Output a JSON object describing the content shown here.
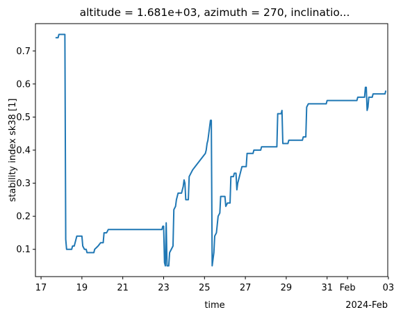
{
  "chart_data": {
    "type": "line",
    "title": "altitude = 1.681e+03, azimuth = 270, inclinatio...",
    "xlabel": "time",
    "ylabel": "stability index sk38 [1]",
    "x_offset_label": "2024-Feb",
    "x_axis_type": "date",
    "xlim": [
      "2024-01-16T17:25",
      "2024-02-02T23:14"
    ],
    "ylim": [
      0.0175,
      0.7825
    ],
    "x_ticks": [
      {
        "label": "17",
        "value": "2024-01-17"
      },
      {
        "label": "19",
        "value": "2024-01-19"
      },
      {
        "label": "21",
        "value": "2024-01-21"
      },
      {
        "label": "23",
        "value": "2024-01-23"
      },
      {
        "label": "25",
        "value": "2024-01-25"
      },
      {
        "label": "27",
        "value": "2024-01-27"
      },
      {
        "label": "29",
        "value": "2024-01-29"
      },
      {
        "label": "31",
        "value": "2024-01-31"
      },
      {
        "label": "Feb",
        "value": "2024-02-01"
      },
      {
        "label": "03",
        "value": "2024-02-03"
      }
    ],
    "y_ticks": [
      {
        "label": "0.1",
        "value": 0.1
      },
      {
        "label": "0.2",
        "value": 0.2
      },
      {
        "label": "0.3",
        "value": 0.3
      },
      {
        "label": "0.4",
        "value": 0.4
      },
      {
        "label": "0.5",
        "value": 0.5
      },
      {
        "label": "0.6",
        "value": 0.6
      },
      {
        "label": "0.7",
        "value": 0.7
      }
    ],
    "grid": false,
    "series": [
      {
        "color": "#1f77b4",
        "points": [
          [
            "2024-01-17T17:00",
            0.74
          ],
          [
            "2024-01-17T20:00",
            0.74
          ],
          [
            "2024-01-17T21:00",
            0.75
          ],
          [
            "2024-01-18T04:00",
            0.75
          ],
          [
            "2024-01-18T05:00",
            0.13
          ],
          [
            "2024-01-18T06:00",
            0.1
          ],
          [
            "2024-01-18T12:00",
            0.1
          ],
          [
            "2024-01-18T13:00",
            0.11
          ],
          [
            "2024-01-18T15:00",
            0.11
          ],
          [
            "2024-01-18T17:00",
            0.13
          ],
          [
            "2024-01-18T18:00",
            0.14
          ],
          [
            "2024-01-19T00:00",
            0.14
          ],
          [
            "2024-01-19T01:00",
            0.11
          ],
          [
            "2024-01-19T03:00",
            0.1
          ],
          [
            "2024-01-19T05:00",
            0.1
          ],
          [
            "2024-01-19T06:00",
            0.09
          ],
          [
            "2024-01-19T14:00",
            0.09
          ],
          [
            "2024-01-19T15:00",
            0.1
          ],
          [
            "2024-01-19T19:00",
            0.11
          ],
          [
            "2024-01-19T22:00",
            0.12
          ],
          [
            "2024-01-20T01:00",
            0.12
          ],
          [
            "2024-01-20T02:00",
            0.15
          ],
          [
            "2024-01-20T05:00",
            0.15
          ],
          [
            "2024-01-20T07:00",
            0.16
          ],
          [
            "2024-01-22T22:00",
            0.16
          ],
          [
            "2024-01-22T23:00",
            0.17
          ],
          [
            "2024-01-23T00:00",
            0.17
          ],
          [
            "2024-01-23T01:00",
            0.06
          ],
          [
            "2024-01-23T02:00",
            0.05
          ],
          [
            "2024-01-23T03:00",
            0.18
          ],
          [
            "2024-01-23T04:00",
            0.05
          ],
          [
            "2024-01-23T06:00",
            0.05
          ],
          [
            "2024-01-23T07:00",
            0.09
          ],
          [
            "2024-01-23T09:00",
            0.1
          ],
          [
            "2024-01-23T11:00",
            0.11
          ],
          [
            "2024-01-23T12:00",
            0.22
          ],
          [
            "2024-01-23T14:00",
            0.23
          ],
          [
            "2024-01-23T15:00",
            0.25
          ],
          [
            "2024-01-23T16:00",
            0.26
          ],
          [
            "2024-01-23T17:00",
            0.27
          ],
          [
            "2024-01-23T21:00",
            0.27
          ],
          [
            "2024-01-23T22:00",
            0.28
          ],
          [
            "2024-01-23T23:00",
            0.29
          ],
          [
            "2024-01-24T00:00",
            0.31
          ],
          [
            "2024-01-24T01:00",
            0.3
          ],
          [
            "2024-01-24T02:00",
            0.25
          ],
          [
            "2024-01-24T05:00",
            0.25
          ],
          [
            "2024-01-24T06:00",
            0.32
          ],
          [
            "2024-01-24T08:00",
            0.33
          ],
          [
            "2024-01-24T10:00",
            0.34
          ],
          [
            "2024-01-24T13:00",
            0.35
          ],
          [
            "2024-01-24T16:00",
            0.36
          ],
          [
            "2024-01-24T19:00",
            0.37
          ],
          [
            "2024-01-24T22:00",
            0.38
          ],
          [
            "2024-01-25T01:00",
            0.39
          ],
          [
            "2024-01-25T02:00",
            0.4
          ],
          [
            "2024-01-25T03:00",
            0.42
          ],
          [
            "2024-01-25T04:00",
            0.43
          ],
          [
            "2024-01-25T05:00",
            0.45
          ],
          [
            "2024-01-25T06:00",
            0.47
          ],
          [
            "2024-01-25T07:00",
            0.49
          ],
          [
            "2024-01-25T08:00",
            0.49
          ],
          [
            "2024-01-25T09:00",
            0.05
          ],
          [
            "2024-01-25T10:00",
            0.07
          ],
          [
            "2024-01-25T11:00",
            0.09
          ],
          [
            "2024-01-25T12:00",
            0.14
          ],
          [
            "2024-01-25T14:00",
            0.15
          ],
          [
            "2024-01-25T16:00",
            0.2
          ],
          [
            "2024-01-25T18:00",
            0.21
          ],
          [
            "2024-01-25T19:00",
            0.26
          ],
          [
            "2024-01-26T00:00",
            0.26
          ],
          [
            "2024-01-26T01:00",
            0.23
          ],
          [
            "2024-01-26T03:00",
            0.24
          ],
          [
            "2024-01-26T06:00",
            0.24
          ],
          [
            "2024-01-26T07:00",
            0.32
          ],
          [
            "2024-01-26T10:00",
            0.32
          ],
          [
            "2024-01-26T11:00",
            0.33
          ],
          [
            "2024-01-26T13:00",
            0.33
          ],
          [
            "2024-01-26T14:00",
            0.28
          ],
          [
            "2024-01-26T15:00",
            0.3
          ],
          [
            "2024-01-26T17:00",
            0.32
          ],
          [
            "2024-01-26T18:00",
            0.33
          ],
          [
            "2024-01-26T20:00",
            0.35
          ],
          [
            "2024-01-27T01:00",
            0.35
          ],
          [
            "2024-01-27T02:00",
            0.39
          ],
          [
            "2024-01-27T09:00",
            0.39
          ],
          [
            "2024-01-27T10:00",
            0.4
          ],
          [
            "2024-01-27T18:00",
            0.4
          ],
          [
            "2024-01-27T19:00",
            0.41
          ],
          [
            "2024-01-28T13:00",
            0.41
          ],
          [
            "2024-01-28T14:00",
            0.51
          ],
          [
            "2024-01-28T18:00",
            0.51
          ],
          [
            "2024-01-28T19:00",
            0.52
          ],
          [
            "2024-01-28T20:00",
            0.42
          ],
          [
            "2024-01-29T02:00",
            0.42
          ],
          [
            "2024-01-29T03:00",
            0.43
          ],
          [
            "2024-01-29T19:00",
            0.43
          ],
          [
            "2024-01-29T20:00",
            0.44
          ],
          [
            "2024-01-29T23:00",
            0.44
          ],
          [
            "2024-01-30T00:00",
            0.53
          ],
          [
            "2024-01-30T02:00",
            0.54
          ],
          [
            "2024-01-30T23:00",
            0.54
          ],
          [
            "2024-01-31T00:00",
            0.55
          ],
          [
            "2024-02-01T11:00",
            0.55
          ],
          [
            "2024-02-01T12:00",
            0.56
          ],
          [
            "2024-02-01T20:00",
            0.56
          ],
          [
            "2024-02-01T21:00",
            0.59
          ],
          [
            "2024-02-01T22:00",
            0.59
          ],
          [
            "2024-02-01T23:00",
            0.52
          ],
          [
            "2024-02-02T00:00",
            0.53
          ],
          [
            "2024-02-02T01:00",
            0.56
          ],
          [
            "2024-02-02T05:00",
            0.56
          ],
          [
            "2024-02-02T06:00",
            0.57
          ],
          [
            "2024-02-02T20:00",
            0.57
          ],
          [
            "2024-02-02T21:00",
            0.58
          ]
        ]
      }
    ]
  }
}
